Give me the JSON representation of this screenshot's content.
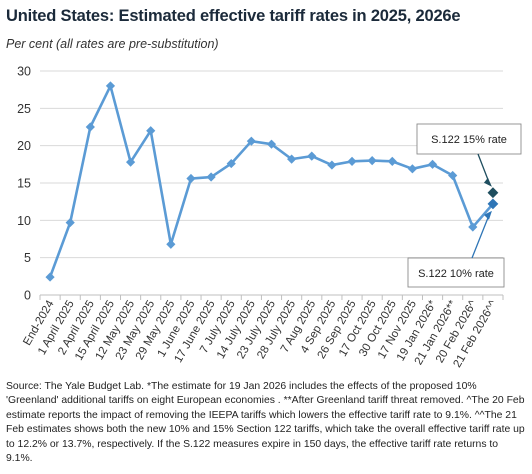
{
  "header": {
    "title": "United States: Estimated effective tariff rates in 2025, 2026e",
    "subtitle": "Per cent (all rates are pre-substitution)"
  },
  "source": "Source: The Yale Budget Lab. *The estimate for 19 Jan 2026 includes the effects of the proposed 10% 'Greenland' additional tariffs on eight European economies . **After Greenland tariff threat removed. ^The 20 Feb estimate reports the impact of removing the IEEPA tariffs which lowers the effective tariff rate to 9.1%. ^^The 21 Feb estimates shows both the new 10% and 15% Section 122 tariffs, which take the overall effective tariff rate up to 12.2% or 13.7%, respectively. If the S.122 measures expire in 150 days, the effective tariff rate returns to 9.1%.",
  "chart_data": {
    "type": "line",
    "categories": [
      "End-2024",
      "1 April 2025",
      "2 April 2025",
      "15 April 2025",
      "12 May 2025",
      "23 May 2025",
      "29 May 2025",
      "1 June 2025",
      "17 June 2025",
      "7 July 2025",
      "14 July 2025",
      "23 July 2025",
      "28 July 2025",
      "7 Aug 2025",
      "4 Sep 2025",
      "26 Sep 2025",
      "17 Oct 2025",
      "30 Oct 2025",
      "17 Nov 2025",
      "19 Jan 2026*",
      "21 Jan 2026**",
      "20 Feb 2026^",
      "21 Feb 2026^^"
    ],
    "series": [
      {
        "values": [
          2.4,
          9.7,
          22.5,
          28.0,
          17.8,
          22.0,
          6.8,
          15.6,
          15.8,
          17.6,
          20.6,
          20.2,
          18.2,
          18.6,
          17.4,
          17.9,
          18.0,
          17.9,
          16.9,
          17.5,
          16.0,
          9.1,
          12.2
        ],
        "color": "#5b9bd5"
      }
    ],
    "extra_points": [
      {
        "x": "21 Feb 2026^^",
        "y": 13.7,
        "color": "#1f4e5f",
        "shape": "diamond",
        "label": "S.122 15% rate"
      },
      {
        "x": "21 Feb 2026^^",
        "y": 12.2,
        "color": "#2e75b6",
        "shape": "diamond",
        "label": "S.122 10% rate"
      }
    ],
    "ylim": [
      0,
      30
    ],
    "yticks": [
      0,
      5,
      10,
      15,
      20,
      25,
      30
    ],
    "xlabel": "",
    "ylabel": "",
    "grid": "horizontal"
  }
}
